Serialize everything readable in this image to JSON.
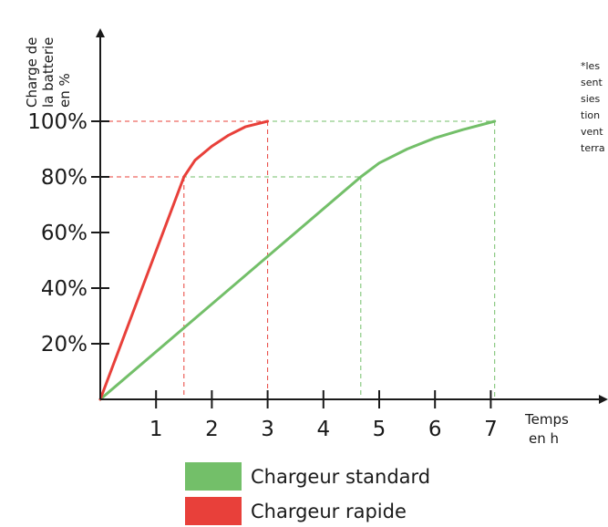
{
  "chart_data": {
    "type": "line",
    "title": "",
    "ylabel": [
      "Charge de",
      "la batterie",
      "en %"
    ],
    "xlabel": [
      "Temps",
      "en h"
    ],
    "x_ticks": [
      "1",
      "2",
      "3",
      "4",
      "5",
      "6",
      "7"
    ],
    "y_ticks": [
      "20%",
      "40%",
      "60%",
      "80%",
      "100%"
    ],
    "y_tick_values": [
      20,
      40,
      60,
      80,
      100
    ],
    "x_tick_values": [
      1,
      2,
      3,
      4,
      5,
      6,
      7
    ],
    "xlim": [
      0,
      7
    ],
    "ylim": [
      0,
      100
    ],
    "grid": false,
    "legend_position": "bottom",
    "note": [
      "*les",
      "sent",
      "sies",
      "tion",
      "vent",
      "terra"
    ],
    "series": [
      {
        "name": "Chargeur standard",
        "color": "#73bf69",
        "x": [
          0,
          4.67,
          5.0,
          5.5,
          6.0,
          6.5,
          7.07
        ],
        "y": [
          0,
          80,
          85,
          90,
          94,
          97,
          100
        ],
        "markers": [
          {
            "x": 4.67,
            "y": 80
          },
          {
            "x": 7.07,
            "y": 100
          }
        ]
      },
      {
        "name": "Chargeur rapide",
        "color": "#e8403a",
        "x": [
          0,
          1.5,
          1.7,
          2.0,
          2.3,
          2.6,
          3.0
        ],
        "y": [
          0,
          80,
          86,
          91,
          95,
          98,
          100
        ],
        "markers": [
          {
            "x": 1.5,
            "y": 80
          },
          {
            "x": 3.0,
            "y": 100
          }
        ]
      }
    ]
  }
}
